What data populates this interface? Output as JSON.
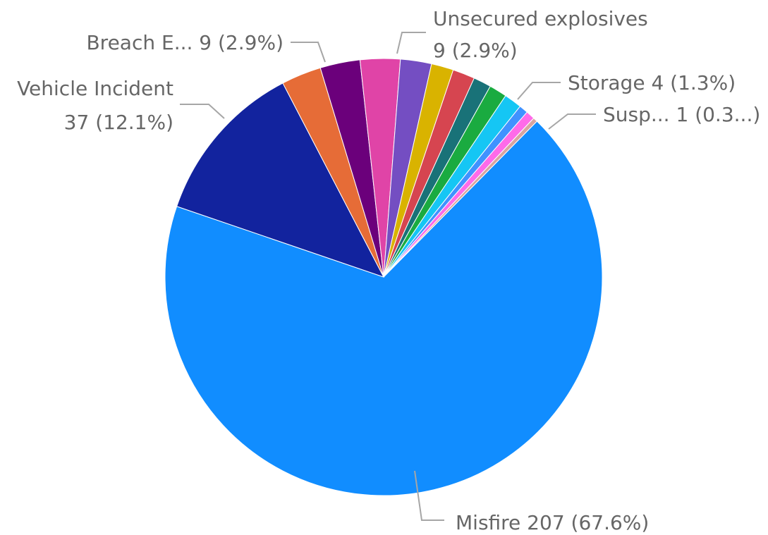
{
  "chart_data": {
    "type": "pie",
    "title": "",
    "slices": [
      {
        "label": "Misfire",
        "value": 207,
        "percent": "67.6%",
        "color": "#118DFF"
      },
      {
        "label": "Vehicle Incident",
        "value": 37,
        "percent": "12.1%",
        "color": "#12239E"
      },
      {
        "label": "Breach E...",
        "value": 9,
        "percent": "2.9%",
        "color": "#E66C37"
      },
      {
        "label": "",
        "value": 9,
        "percent": "2.9%",
        "color": "#6B007B"
      },
      {
        "label": "Unsecured explosives",
        "value": 9,
        "percent": "2.9%",
        "color": "#E044A7"
      },
      {
        "label": "",
        "value": 7,
        "percent": "2.3%",
        "color": "#744EC2"
      },
      {
        "label": "",
        "value": 5,
        "percent": "1.6%",
        "color": "#D9B300"
      },
      {
        "label": "",
        "value": 5,
        "percent": "1.6%",
        "color": "#D64550"
      },
      {
        "label": "",
        "value": 4,
        "percent": "1.3%",
        "color": "#197278"
      },
      {
        "label": "",
        "value": 4,
        "percent": "1.3%",
        "color": "#1AAB40"
      },
      {
        "label": "Storage",
        "value": 4,
        "percent": "1.3%",
        "color": "#15C6F4"
      },
      {
        "label": "",
        "value": 2,
        "percent": "0.7%",
        "color": "#4092FF"
      },
      {
        "label": "",
        "value": 2,
        "percent": "0.7%",
        "color": "#FF6AE9"
      },
      {
        "label": "Susp...",
        "value": 1,
        "percent": "0.3...",
        "color": "#D8A4A0"
      }
    ]
  },
  "labels": {
    "misfire": "Misfire 207 (67.6%)",
    "vehicle_line1": "Vehicle Incident",
    "vehicle_line2": "37 (12.1%)",
    "breach": "Breach E... 9 (2.9%)",
    "unsecured_line1": "Unsecured explosives",
    "unsecured_line2": "9 (2.9%)",
    "storage": "Storage 4 (1.3%)",
    "susp": "Susp... 1 (0.3...)"
  }
}
